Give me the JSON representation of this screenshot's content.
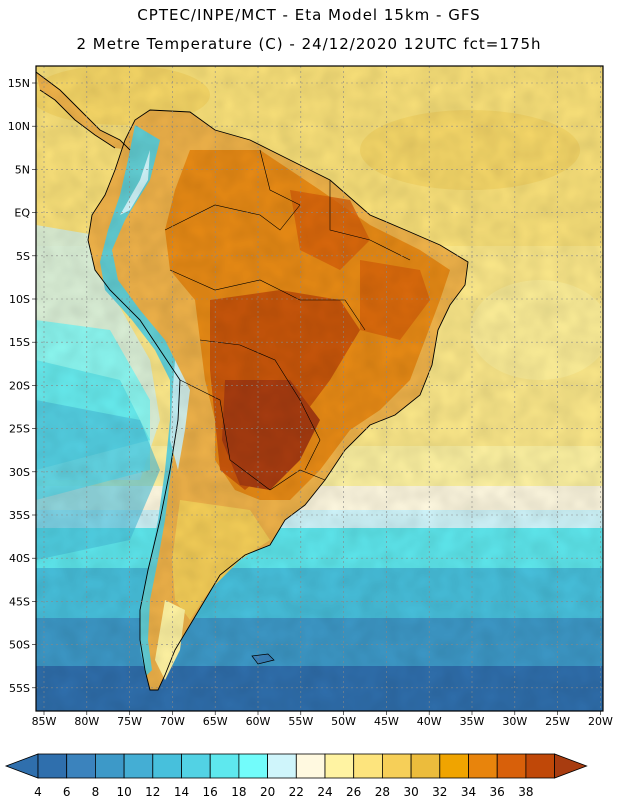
{
  "header": {
    "title_line1": "CPTEC/INPE/MCT -  Eta Model 15km - GFS",
    "title_line2": "2 Metre Temperature (C) - 24/12/2020 12UTC fct=175h"
  },
  "map": {
    "lat_labels": [
      "15N",
      "10N",
      "5N",
      "EQ",
      "5S",
      "10S",
      "15S",
      "20S",
      "25S",
      "30S",
      "35S",
      "40S",
      "45S",
      "50S",
      "55S"
    ],
    "lon_labels": [
      "85W",
      "80W",
      "75W",
      "70W",
      "65W",
      "60W",
      "55W",
      "50W",
      "45W",
      "40W",
      "35W",
      "30W",
      "25W",
      "20W"
    ]
  },
  "legend": {
    "values": [
      "4",
      "6",
      "8",
      "10",
      "12",
      "14",
      "16",
      "18",
      "20",
      "22",
      "24",
      "26",
      "28",
      "30",
      "32",
      "34",
      "36",
      "38"
    ],
    "colors": [
      "#2f6fad",
      "#3b83bd",
      "#3d99c8",
      "#44aed4",
      "#47c0dc",
      "#52d2e4",
      "#5ee8ee",
      "#72fcfb",
      "#cff5fb",
      "#fff9e0",
      "#fff3a2",
      "#fde47d",
      "#f6cf58",
      "#ecbc3c",
      "#f0a400",
      "#e8840c",
      "#d8600a",
      "#c04808",
      "#a83c10"
    ]
  },
  "colors": {
    "ocean_warm": "#fbe27a",
    "land_hot": "#a83c10",
    "ocean_cold": "#2f6fad"
  }
}
